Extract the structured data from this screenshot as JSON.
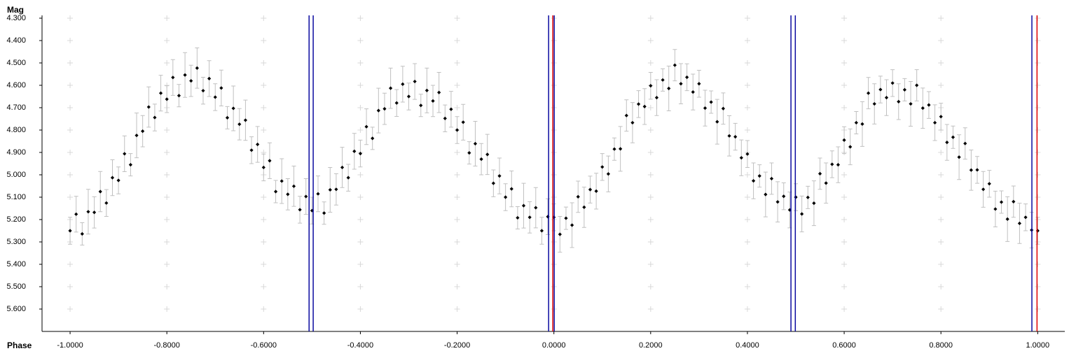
{
  "chart_data": {
    "type": "scatter",
    "y_label": "Mag",
    "x_label": "Phase",
    "y_inverted": true,
    "grid": "crosses",
    "point_color": "#000000",
    "error_color": "#c0c0c0",
    "xlim": [
      -1.058,
      1.056
    ],
    "ylim": [
      4.3,
      5.7
    ],
    "xticks": [
      {
        "value": -1,
        "label": "-1.0000"
      },
      {
        "value": -0.8,
        "label": "-0.8000"
      },
      {
        "value": -0.6,
        "label": "-0.6000"
      },
      {
        "value": -0.4,
        "label": "-0.4000"
      },
      {
        "value": -0.2,
        "label": "-0.2000"
      },
      {
        "value": 0,
        "label": "0.0000"
      },
      {
        "value": 0.2,
        "label": "0.2000"
      },
      {
        "value": 0.4,
        "label": "0.4000"
      },
      {
        "value": 0.6,
        "label": "0.6000"
      },
      {
        "value": 0.8,
        "label": "0.8000"
      },
      {
        "value": 1,
        "label": "1.0000"
      }
    ],
    "yticks": [
      {
        "value": 4.3,
        "label": "4.300"
      },
      {
        "value": 4.4,
        "label": "4.400"
      },
      {
        "value": 4.5,
        "label": "4.500"
      },
      {
        "value": 4.6,
        "label": "4.600"
      },
      {
        "value": 4.7,
        "label": "4.700"
      },
      {
        "value": 4.8,
        "label": "4.800"
      },
      {
        "value": 4.9,
        "label": "4.900"
      },
      {
        "value": 5.0,
        "label": "5.000"
      },
      {
        "value": 5.1,
        "label": "5.100"
      },
      {
        "value": 5.2,
        "label": "5.200"
      },
      {
        "value": 5.3,
        "label": "5.300"
      },
      {
        "value": 5.4,
        "label": "5.400"
      },
      {
        "value": 5.5,
        "label": "5.500"
      },
      {
        "value": 5.6,
        "label": "5.600"
      }
    ],
    "markers": [
      {
        "value": -0.506,
        "color": "#0a0aa0"
      },
      {
        "value": -0.4975,
        "color": "#0a0aa0"
      },
      {
        "value": -0.0109,
        "color": "#0a0aa0"
      },
      {
        "value": -0.0022,
        "color": "#e00000"
      },
      {
        "value": 0.0007,
        "color": "#0a0aa0"
      },
      {
        "value": 0.49,
        "color": "#0a0aa0"
      },
      {
        "value": 0.499,
        "color": "#0a0aa0"
      },
      {
        "value": 0.988,
        "color": "#0a0aa0"
      },
      {
        "value": 0.9986,
        "color": "#e00000"
      }
    ],
    "x": [
      -1,
      -0.9875,
      -0.975,
      -0.9625,
      -0.95,
      -0.9375,
      -0.925,
      -0.9125,
      -0.9,
      -0.8875,
      -0.875,
      -0.8625,
      -0.85,
      -0.8375,
      -0.825,
      -0.8125,
      -0.8,
      -0.7875,
      -0.775,
      -0.7625,
      -0.75,
      -0.7375,
      -0.725,
      -0.7125,
      -0.7,
      -0.6875,
      -0.675,
      -0.6625,
      -0.65,
      -0.6375,
      -0.625,
      -0.6125,
      -0.6,
      -0.5875,
      -0.575,
      -0.5625,
      -0.55,
      -0.5375,
      -0.525,
      -0.5125,
      -0.5,
      -0.4875,
      -0.475,
      -0.4625,
      -0.45,
      -0.4375,
      -0.425,
      -0.4125,
      -0.4,
      -0.3875,
      -0.375,
      -0.3625,
      -0.35,
      -0.3375,
      -0.325,
      -0.3125,
      -0.3,
      -0.2875,
      -0.275,
      -0.2625,
      -0.25,
      -0.2375,
      -0.225,
      -0.2125,
      -0.2,
      -0.1875,
      -0.175,
      -0.1625,
      -0.15,
      -0.1375,
      -0.125,
      -0.1125,
      -0.1,
      -0.0875,
      -0.075,
      -0.0625,
      -0.05,
      -0.0375,
      -0.025,
      -0.0125,
      0,
      0.0125,
      0.025,
      0.0375,
      0.05,
      0.0625,
      0.075,
      0.0875,
      0.1,
      0.1125,
      0.125,
      0.1375,
      0.15,
      0.1625,
      0.175,
      0.1875,
      0.2,
      0.2125,
      0.225,
      0.2375,
      0.25,
      0.2625,
      0.275,
      0.2875,
      0.3,
      0.3125,
      0.325,
      0.3375,
      0.35,
      0.3625,
      0.375,
      0.3875,
      0.4,
      0.4125,
      0.425,
      0.4375,
      0.45,
      0.4625,
      0.475,
      0.4875,
      0.5,
      0.5125,
      0.525,
      0.5375,
      0.55,
      0.5625,
      0.575,
      0.5875,
      0.6,
      0.6125,
      0.625,
      0.6375,
      0.65,
      0.6625,
      0.675,
      0.6875,
      0.7,
      0.7125,
      0.725,
      0.7375,
      0.75,
      0.7625,
      0.775,
      0.7875,
      0.8,
      0.8125,
      0.825,
      0.8375,
      0.85,
      0.8625,
      0.875,
      0.8875,
      0.9,
      0.9125,
      0.925,
      0.9375,
      0.95,
      0.9625,
      0.975,
      0.9875,
      1
    ],
    "values": [
      5.25,
      5.176,
      5.264,
      5.165,
      5.168,
      5.075,
      5.126,
      5.013,
      5.025,
      4.906,
      4.955,
      4.824,
      4.805,
      4.697,
      4.744,
      4.635,
      4.662,
      4.565,
      4.646,
      4.554,
      4.58,
      4.523,
      4.624,
      4.57,
      4.653,
      4.612,
      4.745,
      4.703,
      4.774,
      4.756,
      4.89,
      4.864,
      4.967,
      4.937,
      5.075,
      5.028,
      5.087,
      5.051,
      5.156,
      5.097,
      5.16,
      5.085,
      5.171,
      5.067,
      5.065,
      4.967,
      5.013,
      4.895,
      4.905,
      4.785,
      4.837,
      4.713,
      4.705,
      4.613,
      4.679,
      4.595,
      4.65,
      4.583,
      4.69,
      4.623,
      4.67,
      4.632,
      4.748,
      4.707,
      4.8,
      4.765,
      4.902,
      4.861,
      4.93,
      4.909,
      5.038,
      5.005,
      5.1,
      5.063,
      5.192,
      5.138,
      5.19,
      5.147,
      5.25,
      5.187,
      5.19,
      5.266,
      5.194,
      5.225,
      5.098,
      5.145,
      5.066,
      5.073,
      4.965,
      4.996,
      4.885,
      4.884,
      4.735,
      4.767,
      4.684,
      4.695,
      4.602,
      4.655,
      4.576,
      4.614,
      4.51,
      4.593,
      4.564,
      4.63,
      4.593,
      4.702,
      4.675,
      4.763,
      4.704,
      4.826,
      4.83,
      4.924,
      4.907,
      5.027,
      5.005,
      5.088,
      5.017,
      5.121,
      5.096,
      5.157,
      5.1,
      5.175,
      5.101,
      5.127,
      4.995,
      5.037,
      4.953,
      4.955,
      4.845,
      4.875,
      4.767,
      4.773,
      4.635,
      4.683,
      4.619,
      4.655,
      4.59,
      4.673,
      4.62,
      4.683,
      4.6,
      4.702,
      4.688,
      4.767,
      4.74,
      4.855,
      4.832,
      4.921,
      4.86,
      4.979,
      4.978,
      5.065,
      5.04,
      5.153,
      5.122,
      5.198,
      5.12,
      5.217,
      5.19,
      5.247,
      5.25
    ],
    "errors": [
      0.06,
      0.08,
      0.05,
      0.1,
      0.07,
      0.09,
      0.06,
      0.08,
      0.06,
      0.08,
      0.05,
      0.1,
      0.07,
      0.09,
      0.06,
      0.08,
      0.06,
      0.08,
      0.05,
      0.1,
      0.07,
      0.09,
      0.06,
      0.08,
      0.06,
      0.08,
      0.05,
      0.1,
      0.07,
      0.09,
      0.06,
      0.08,
      0.06,
      0.08,
      0.05,
      0.1,
      0.07,
      0.09,
      0.06,
      0.08,
      0.06,
      0.08,
      0.05,
      0.1,
      0.07,
      0.09,
      0.06,
      0.08,
      0.06,
      0.08,
      0.05,
      0.1,
      0.07,
      0.09,
      0.06,
      0.08,
      0.06,
      0.08,
      0.05,
      0.1,
      0.07,
      0.09,
      0.06,
      0.08,
      0.06,
      0.08,
      0.05,
      0.1,
      0.07,
      0.09,
      0.06,
      0.08,
      0.06,
      0.08,
      0.05,
      0.1,
      0.07,
      0.09,
      0.06,
      0.08,
      0.06,
      0.08,
      0.05,
      0.1,
      0.07,
      0.09,
      0.06,
      0.08,
      0.06,
      0.08,
      0.05,
      0.1,
      0.07,
      0.09,
      0.06,
      0.08,
      0.06,
      0.08,
      0.05,
      0.1,
      0.07,
      0.09,
      0.06,
      0.08,
      0.06,
      0.08,
      0.05,
      0.1,
      0.07,
      0.09,
      0.06,
      0.08,
      0.06,
      0.08,
      0.05,
      0.1,
      0.07,
      0.09,
      0.06,
      0.08,
      0.06,
      0.08,
      0.05,
      0.1,
      0.07,
      0.09,
      0.06,
      0.08,
      0.06,
      0.08,
      0.05,
      0.1,
      0.07,
      0.09,
      0.06,
      0.08,
      0.06,
      0.08,
      0.05,
      0.1,
      0.07,
      0.09,
      0.06,
      0.08,
      0.06,
      0.08,
      0.05,
      0.1,
      0.07,
      0.09,
      0.06,
      0.08,
      0.06,
      0.08,
      0.05,
      0.1,
      0.07,
      0.09,
      0.06,
      0.08,
      0.06
    ]
  }
}
